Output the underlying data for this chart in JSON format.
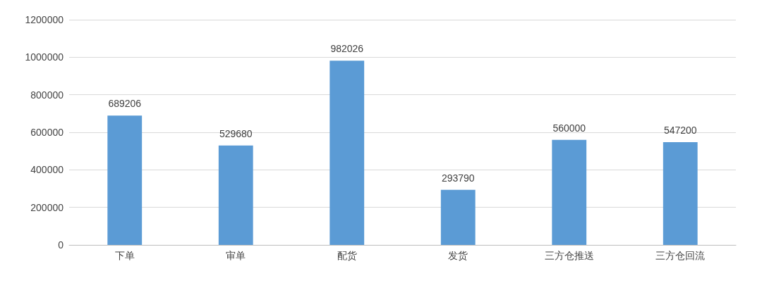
{
  "chart_data": {
    "type": "bar",
    "categories": [
      "下单",
      "审单",
      "配货",
      "发货",
      "三方仓推送",
      "三方仓回流"
    ],
    "values": [
      689206,
      529680,
      982026,
      293790,
      560000,
      547200
    ],
    "color": "#5b9bd5",
    "ylim": [
      0,
      1200000
    ],
    "yticks": [
      0,
      200000,
      400000,
      600000,
      800000,
      1000000,
      1200000
    ],
    "grid": "y",
    "data_labels": true
  }
}
